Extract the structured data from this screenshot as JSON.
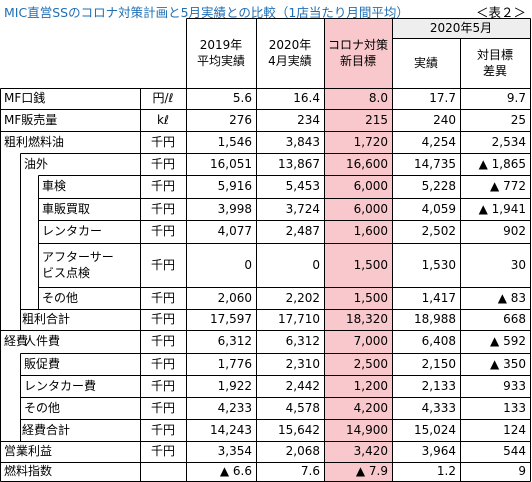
{
  "title": "MIC直営SSのコロナ対策計画と5月実績との比較（1店当たり月間平均）",
  "table_no": "＜表２＞",
  "colors": {
    "title": "#1f6fb5",
    "highlight": "#f8c8cc",
    "header_bg": "#eeeeee"
  },
  "headers": {
    "c1": "2019年\n平均実績",
    "c2": "2020年\n4月実績",
    "c3": "コロナ対策\n新目標",
    "group": "2020年5月",
    "c4": "実績",
    "c5": "対目標\n差異"
  },
  "rows": [
    {
      "g": "",
      "s": "MF口銭",
      "u": "円/ℓ",
      "v": [
        "5.6",
        "16.4",
        "8.0",
        "17.7",
        "9.7"
      ]
    },
    {
      "g": "",
      "s": "MF販売量",
      "u": "kℓ",
      "v": [
        "276",
        "234",
        "215",
        "240",
        "25"
      ]
    },
    {
      "g": "粗利",
      "s": "燃料油",
      "u": "千円",
      "v": [
        "1,546",
        "3,843",
        "1,720",
        "4,254",
        "2,534"
      ]
    },
    {
      "g": "",
      "s": "油外",
      "u": "千円",
      "v": [
        "16,051",
        "13,867",
        "16,600",
        "14,735",
        "▲ 1,865"
      ]
    },
    {
      "g": "",
      "s": "車検",
      "u": "千円",
      "v": [
        "5,916",
        "5,453",
        "6,000",
        "5,228",
        "▲ 772"
      ]
    },
    {
      "g": "",
      "s": "車販買取",
      "u": "千円",
      "v": [
        "3,998",
        "3,724",
        "6,000",
        "4,059",
        "▲ 1,941"
      ]
    },
    {
      "g": "",
      "s": "レンタカー",
      "u": "千円",
      "v": [
        "4,077",
        "2,487",
        "1,600",
        "2,502",
        "902"
      ]
    },
    {
      "g": "",
      "s": "アフターサー\nビス点検",
      "u": "千円",
      "v": [
        "0",
        "0",
        "1,500",
        "1,530",
        "30"
      ]
    },
    {
      "g": "",
      "s": "その他",
      "u": "千円",
      "v": [
        "2,060",
        "2,202",
        "1,500",
        "1,417",
        "▲ 83"
      ]
    },
    {
      "g": "",
      "s": "粗利合計",
      "u": "千円",
      "v": [
        "17,597",
        "17,710",
        "18,320",
        "18,988",
        "668"
      ]
    },
    {
      "g": "経費",
      "s": "人件費",
      "u": "千円",
      "v": [
        "6,312",
        "6,312",
        "7,000",
        "6,408",
        "▲ 592"
      ]
    },
    {
      "g": "",
      "s": "販促費",
      "u": "千円",
      "v": [
        "1,776",
        "2,310",
        "2,500",
        "2,150",
        "▲ 350"
      ]
    },
    {
      "g": "",
      "s": "レンタカー費",
      "u": "千円",
      "v": [
        "1,922",
        "2,442",
        "1,200",
        "2,133",
        "933"
      ]
    },
    {
      "g": "",
      "s": "その他",
      "u": "千円",
      "v": [
        "4,233",
        "4,578",
        "4,200",
        "4,333",
        "133"
      ]
    },
    {
      "g": "",
      "s": "経費合計",
      "u": "千円",
      "v": [
        "14,243",
        "15,642",
        "14,900",
        "15,024",
        "124"
      ]
    },
    {
      "g": "",
      "s": "営業利益",
      "u": "千円",
      "v": [
        "3,354",
        "2,068",
        "3,420",
        "3,964",
        "544"
      ]
    },
    {
      "g": "",
      "s": "燃料指数",
      "u": "",
      "v": [
        "▲ 6.6",
        "7.6",
        "▲ 7.9",
        "1.2",
        "9"
      ]
    }
  ]
}
